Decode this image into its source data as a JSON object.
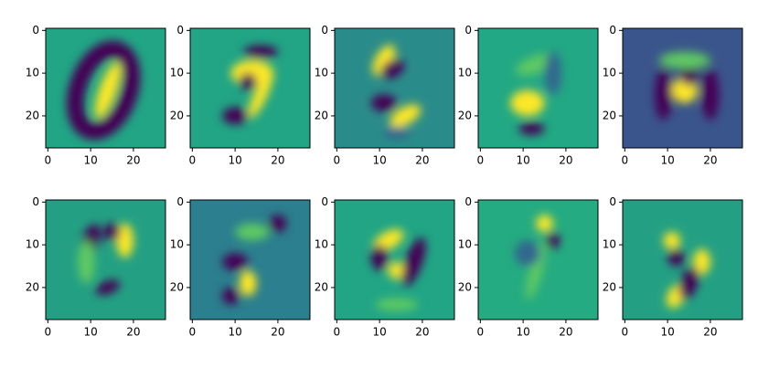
{
  "chart_data": [
    {
      "type": "image",
      "color": "#21a585",
      "xlim": [
        -0.5,
        27.5
      ],
      "ylim": [
        27.5,
        -0.5
      ],
      "xticks": [
        0,
        10,
        20
      ],
      "yticks": [
        0,
        10,
        20
      ]
    },
    {
      "type": "image",
      "color": "#21a585",
      "xlim": [
        -0.5,
        27.5
      ],
      "ylim": [
        27.5,
        -0.5
      ],
      "xticks": [
        0,
        10,
        20
      ],
      "yticks": [
        0,
        10,
        20
      ]
    },
    {
      "type": "image",
      "color": "#2a8c8a",
      "xlim": [
        -0.5,
        27.5
      ],
      "ylim": [
        27.5,
        -0.5
      ],
      "xticks": [
        0,
        10,
        20
      ],
      "yticks": [
        0,
        10,
        20
      ]
    },
    {
      "type": "image",
      "color": "#22a884",
      "xlim": [
        -0.5,
        27.5
      ],
      "ylim": [
        27.5,
        -0.5
      ],
      "xticks": [
        0,
        10,
        20
      ],
      "yticks": [
        0,
        10,
        20
      ]
    },
    {
      "type": "image",
      "color": "#3a558b",
      "xlim": [
        -0.5,
        27.5
      ],
      "ylim": [
        27.5,
        -0.5
      ],
      "xticks": [
        0,
        10,
        20
      ],
      "yticks": [
        0,
        10,
        20
      ]
    },
    {
      "type": "image",
      "color": "#23a083",
      "xlim": [
        -0.5,
        27.5
      ],
      "ylim": [
        27.5,
        -0.5
      ],
      "xticks": [
        0,
        10,
        20
      ],
      "yticks": [
        0,
        10,
        20
      ]
    },
    {
      "type": "image",
      "color": "#2b7f8e",
      "xlim": [
        -0.5,
        27.5
      ],
      "ylim": [
        27.5,
        -0.5
      ],
      "xticks": [
        0,
        10,
        20
      ],
      "yticks": [
        0,
        10,
        20
      ]
    },
    {
      "type": "image",
      "color": "#21a585",
      "xlim": [
        -0.5,
        27.5
      ],
      "ylim": [
        27.5,
        -0.5
      ],
      "xticks": [
        0,
        10,
        20
      ],
      "yticks": [
        0,
        10,
        20
      ]
    },
    {
      "type": "image",
      "color": "#25ab81",
      "xlim": [
        -0.5,
        27.5
      ],
      "ylim": [
        27.5,
        -0.5
      ],
      "xticks": [
        0,
        10,
        20
      ],
      "yticks": [
        0,
        10,
        20
      ]
    },
    {
      "type": "image",
      "color": "#23a083",
      "xlim": [
        -0.5,
        27.5
      ],
      "ylim": [
        27.5,
        -0.5
      ],
      "xticks": [
        0,
        10,
        20
      ],
      "yticks": [
        0,
        10,
        20
      ]
    }
  ]
}
